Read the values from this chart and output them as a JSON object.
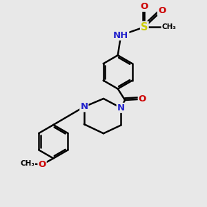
{
  "bg_color": "#e8e8e8",
  "atom_colors": {
    "C": "#000000",
    "N": "#2222cc",
    "O": "#cc0000",
    "S": "#cccc00",
    "H": "#888888"
  },
  "bond_color": "#000000",
  "bond_width": 1.8,
  "font_size": 8.5,
  "figsize": [
    3.0,
    3.0
  ],
  "dpi": 100,
  "xlim": [
    0,
    10
  ],
  "ylim": [
    0,
    10
  ]
}
